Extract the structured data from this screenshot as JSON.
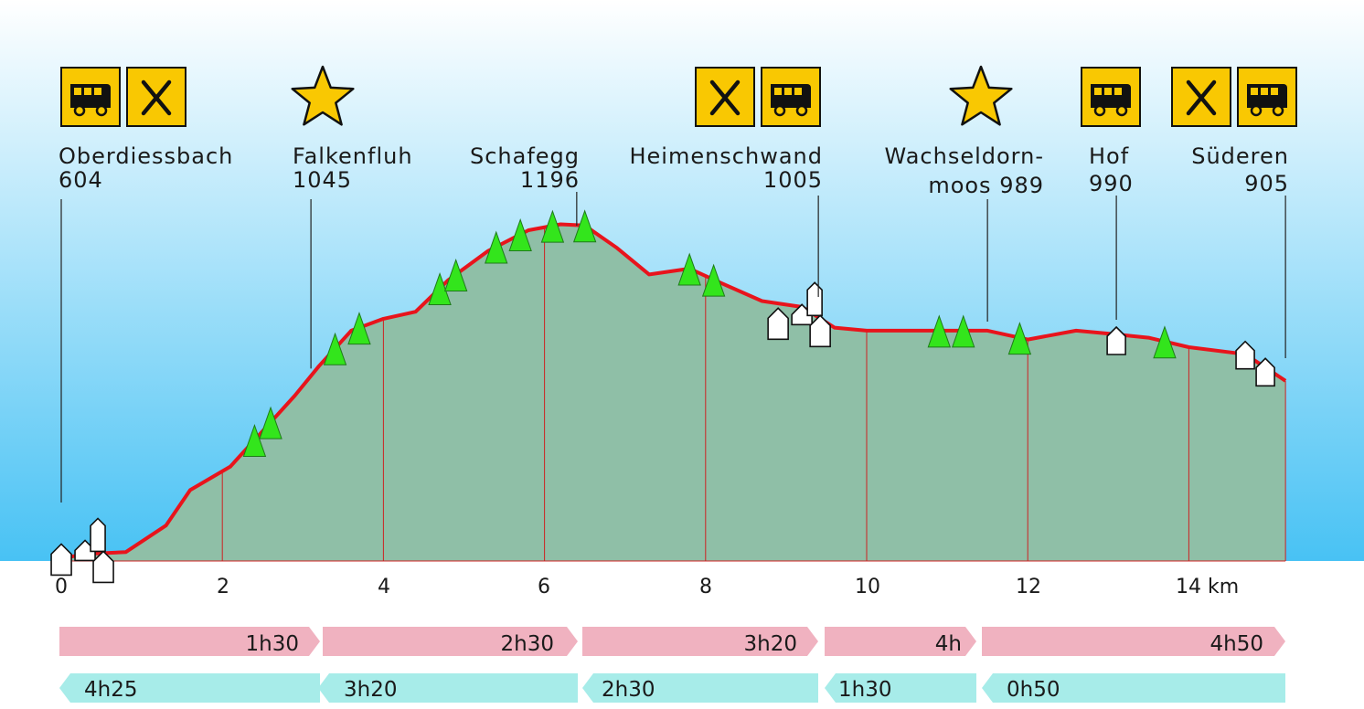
{
  "chart_data": {
    "type": "area",
    "xlabel": "",
    "ylabel": "",
    "x_unit": "km",
    "xlim": [
      0,
      15.2
    ],
    "ticks": [
      "0",
      "2",
      "4",
      "6",
      "8",
      "10",
      "12",
      "14 km"
    ],
    "tick_values": [
      0,
      2,
      4,
      6,
      8,
      10,
      12,
      14
    ],
    "profile": {
      "x": [
        0,
        0.3,
        0.8,
        1.3,
        1.6,
        2.1,
        2.5,
        2.9,
        3.2,
        3.6,
        4.0,
        4.4,
        4.8,
        5.3,
        5.8,
        6.2,
        6.5,
        6.9,
        7.3,
        7.8,
        8.2,
        8.7,
        9.2,
        9.6,
        10.0,
        11.0,
        11.5,
        12.0,
        12.6,
        13.0,
        13.5,
        14.0,
        14.7,
        15.2
      ],
      "elevation": [
        604,
        612,
        615,
        660,
        720,
        760,
        820,
        880,
        930,
        990,
        1010,
        1022,
        1075,
        1125,
        1160,
        1170,
        1168,
        1130,
        1085,
        1095,
        1070,
        1040,
        1030,
        995,
        990,
        990,
        990,
        975,
        990,
        985,
        978,
        962,
        950,
        905
      ]
    },
    "places": [
      {
        "name": "Oberdiessbach",
        "elevation_label": "604",
        "km": 0,
        "elevation": 604,
        "services": [
          "bus-icon",
          "restaurant-icon"
        ]
      },
      {
        "name": "Falkenfluh",
        "elevation_label": "1045",
        "km": 3.1,
        "elevation": 1045,
        "highlight": "star-icon"
      },
      {
        "name": "Schafegg",
        "elevation_label": "1196",
        "km": 6.4,
        "elevation": 1196
      },
      {
        "name": "Heimenschwand",
        "elevation_label": "1005",
        "km": 9.4,
        "elevation": 1005,
        "services": [
          "restaurant-icon",
          "bus-icon"
        ]
      },
      {
        "name_line1": "Wachseldorn-",
        "name_line2": "moos 989",
        "km": 11.5,
        "elevation": 989,
        "highlight": "star-icon"
      },
      {
        "name": "Hof",
        "elevation_label": "990",
        "km": 13.1,
        "elevation": 990,
        "services": [
          "bus-icon"
        ]
      },
      {
        "name": "Süderen",
        "elevation_label": "905",
        "km": 15.2,
        "elevation": 905,
        "services": [
          "restaurant-icon",
          "bus-icon"
        ]
      }
    ],
    "forward_times": [
      "1h30",
      "2h30",
      "3h20",
      "4h",
      "4h50"
    ],
    "return_times": [
      "4h25",
      "3h20",
      "2h30",
      "1h30",
      "0h50"
    ],
    "colors": {
      "sky_top": "#ffffff",
      "sky_bottom": "#48c2f4",
      "terrain": "#8fbfa7",
      "route": "#e8141c",
      "grid": "#cc2222",
      "icon_bg": "#f9c802",
      "tree": "#33e51c",
      "forward_arrow": "#f0b2c0",
      "return_arrow": "#a7ece9"
    }
  }
}
